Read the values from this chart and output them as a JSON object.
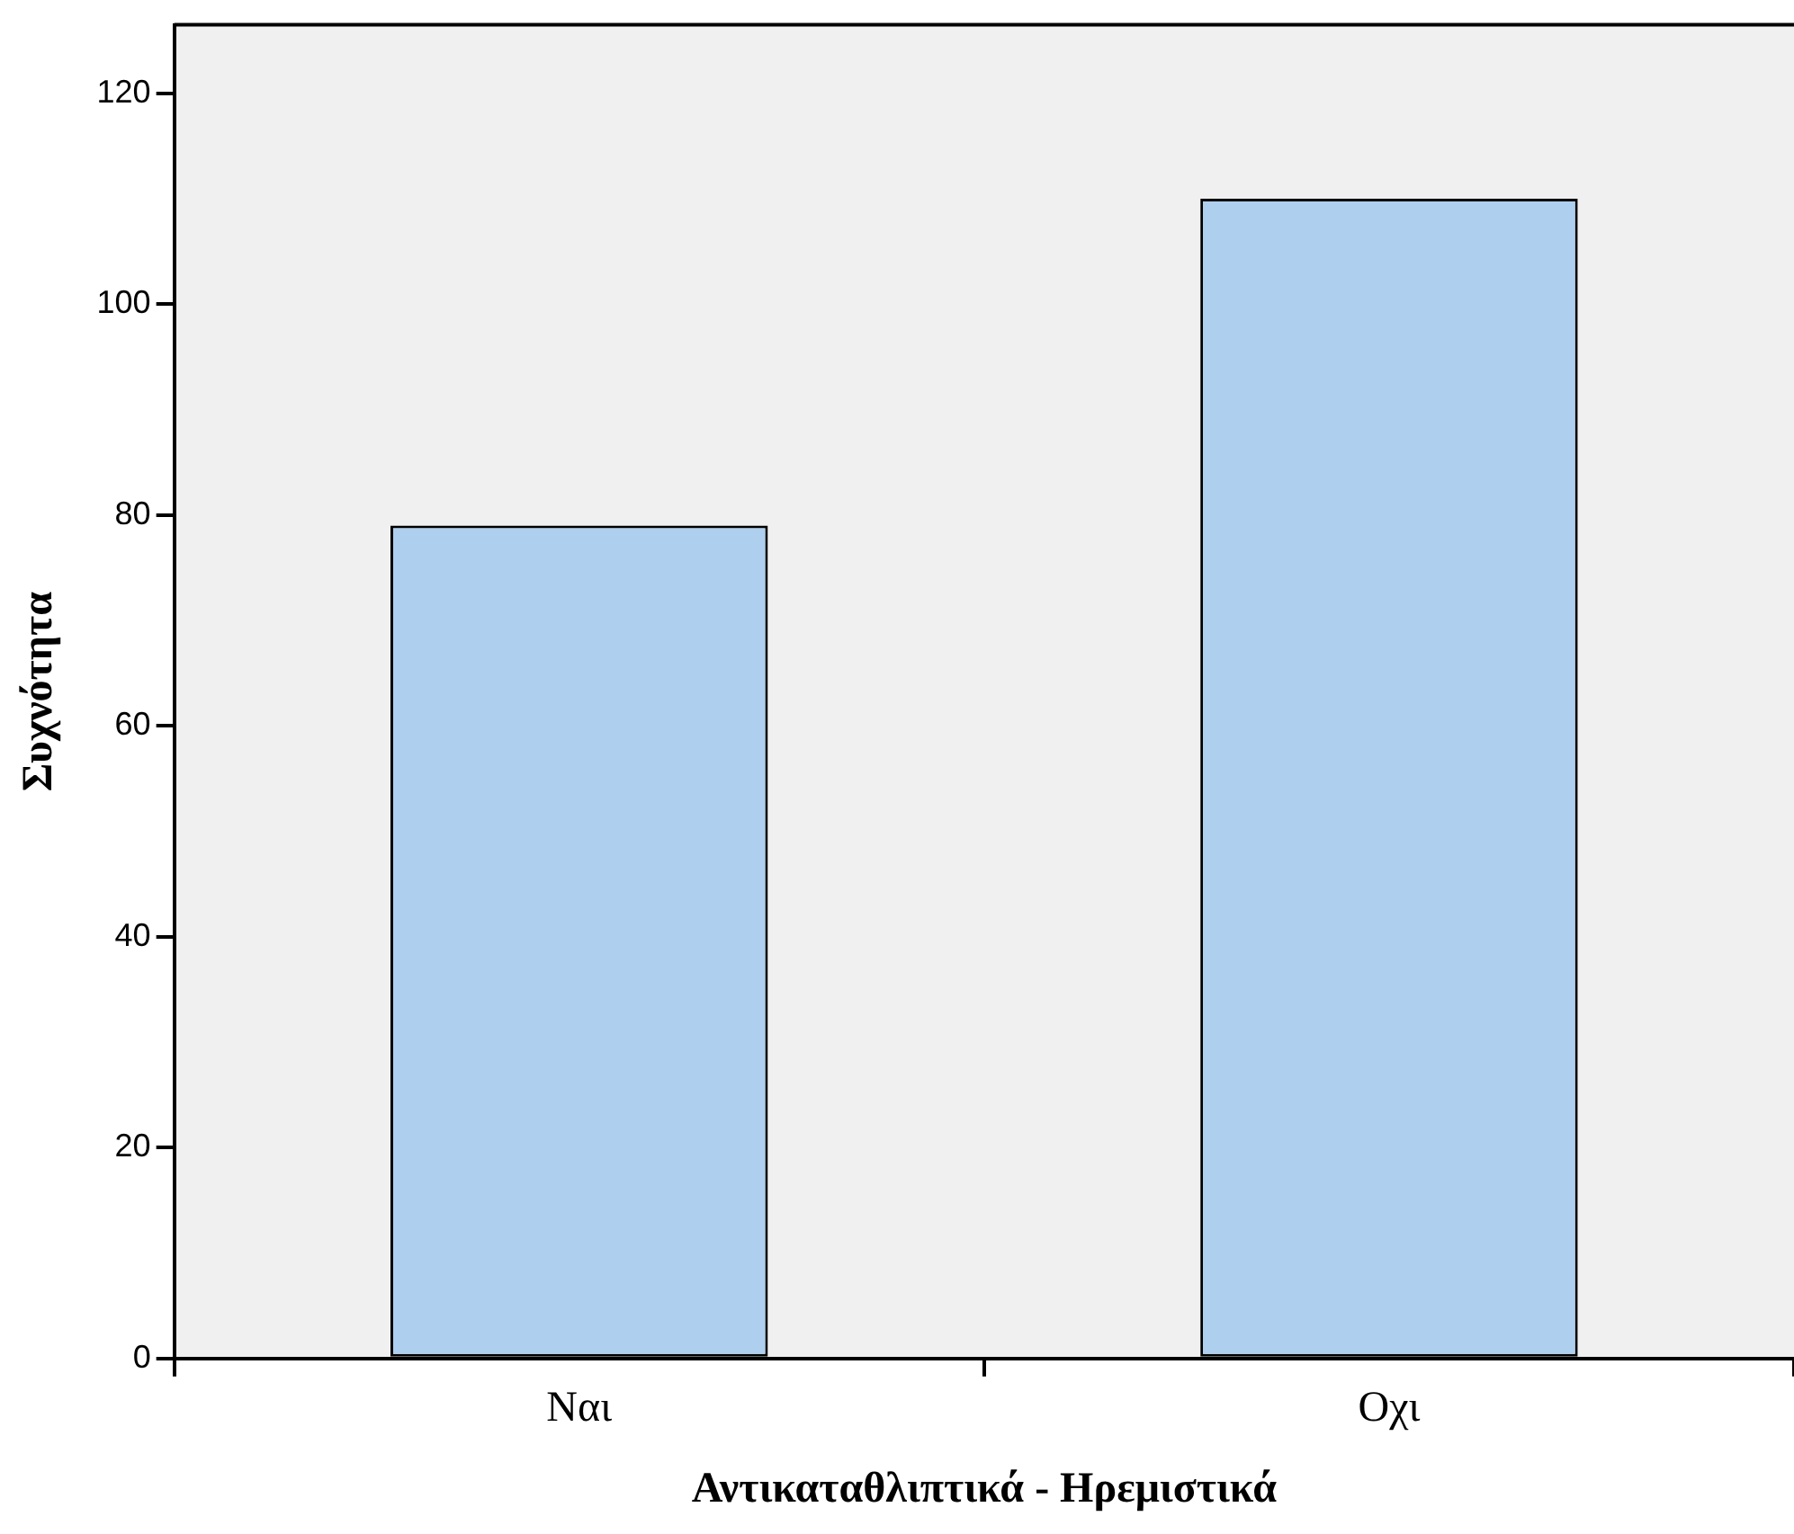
{
  "chart_data": {
    "type": "bar",
    "xlabel": "Αντικαταθλιπτικά - Ηρεμιστικά",
    "ylabel": "Συχνότητα",
    "categories": [
      "Ναι",
      "Οχι"
    ],
    "values": [
      79,
      110
    ],
    "color": "#aecfee",
    "ylim": [
      0,
      126.5
    ],
    "yticks": [
      0,
      20,
      40,
      60,
      80,
      100,
      120
    ],
    "grid": false,
    "legend": false
  }
}
